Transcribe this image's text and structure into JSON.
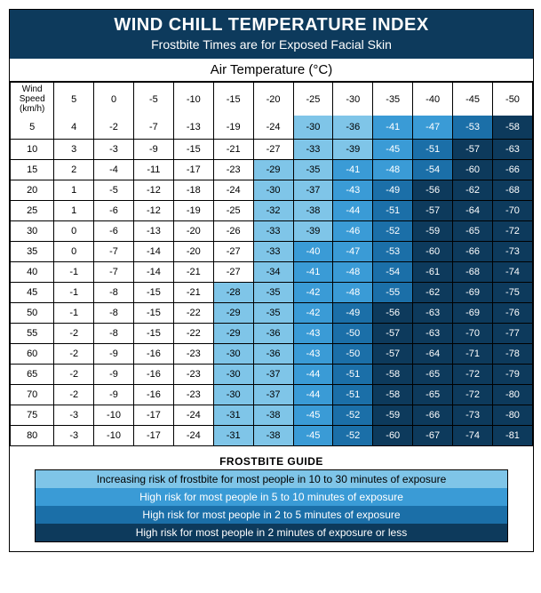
{
  "header": {
    "title": "WIND CHILL TEMPERATURE INDEX",
    "subtitle": "Frostbite Times are for Exposed Facial Skin"
  },
  "air_temp_label": "Air Temperature (°C)",
  "corner_label": "Wind Speed (km/h)",
  "chart": {
    "type": "table-heatmap",
    "col_headers": [
      "5",
      "0",
      "-5",
      "-10",
      "-15",
      "-20",
      "-25",
      "-30",
      "-35",
      "-40",
      "-45",
      "-50"
    ],
    "row_headers": [
      "5",
      "10",
      "15",
      "20",
      "25",
      "30",
      "35",
      "40",
      "45",
      "50",
      "55",
      "60",
      "65",
      "70",
      "75",
      "80"
    ],
    "values": [
      [
        "4",
        "-2",
        "-7",
        "-13",
        "-19",
        "-24",
        "-30",
        "-36",
        "-41",
        "-47",
        "-53",
        "-58"
      ],
      [
        "3",
        "-3",
        "-9",
        "-15",
        "-21",
        "-27",
        "-33",
        "-39",
        "-45",
        "-51",
        "-57",
        "-63"
      ],
      [
        "2",
        "-4",
        "-11",
        "-17",
        "-23",
        "-29",
        "-35",
        "-41",
        "-48",
        "-54",
        "-60",
        "-66"
      ],
      [
        "1",
        "-5",
        "-12",
        "-18",
        "-24",
        "-30",
        "-37",
        "-43",
        "-49",
        "-56",
        "-62",
        "-68"
      ],
      [
        "1",
        "-6",
        "-12",
        "-19",
        "-25",
        "-32",
        "-38",
        "-44",
        "-51",
        "-57",
        "-64",
        "-70"
      ],
      [
        "0",
        "-6",
        "-13",
        "-20",
        "-26",
        "-33",
        "-39",
        "-46",
        "-52",
        "-59",
        "-65",
        "-72"
      ],
      [
        "0",
        "-7",
        "-14",
        "-20",
        "-27",
        "-33",
        "-40",
        "-47",
        "-53",
        "-60",
        "-66",
        "-73"
      ],
      [
        "-1",
        "-7",
        "-14",
        "-21",
        "-27",
        "-34",
        "-41",
        "-48",
        "-54",
        "-61",
        "-68",
        "-74"
      ],
      [
        "-1",
        "-8",
        "-15",
        "-21",
        "-28",
        "-35",
        "-42",
        "-48",
        "-55",
        "-62",
        "-69",
        "-75"
      ],
      [
        "-1",
        "-8",
        "-15",
        "-22",
        "-29",
        "-35",
        "-42",
        "-49",
        "-56",
        "-63",
        "-69",
        "-76"
      ],
      [
        "-2",
        "-8",
        "-15",
        "-22",
        "-29",
        "-36",
        "-43",
        "-50",
        "-57",
        "-63",
        "-70",
        "-77"
      ],
      [
        "-2",
        "-9",
        "-16",
        "-23",
        "-30",
        "-36",
        "-43",
        "-50",
        "-57",
        "-64",
        "-71",
        "-78"
      ],
      [
        "-2",
        "-9",
        "-16",
        "-23",
        "-30",
        "-37",
        "-44",
        "-51",
        "-58",
        "-65",
        "-72",
        "-79"
      ],
      [
        "-2",
        "-9",
        "-16",
        "-23",
        "-30",
        "-37",
        "-44",
        "-51",
        "-58",
        "-65",
        "-72",
        "-80"
      ],
      [
        "-3",
        "-10",
        "-17",
        "-24",
        "-31",
        "-38",
        "-45",
        "-52",
        "-59",
        "-66",
        "-73",
        "-80"
      ],
      [
        "-3",
        "-10",
        "-17",
        "-24",
        "-31",
        "-38",
        "-45",
        "-52",
        "-60",
        "-67",
        "-74",
        "-81"
      ]
    ],
    "risk": [
      [
        0,
        0,
        0,
        0,
        0,
        0,
        1,
        1,
        2,
        2,
        3,
        4
      ],
      [
        0,
        0,
        0,
        0,
        0,
        0,
        1,
        1,
        2,
        3,
        4,
        4
      ],
      [
        0,
        0,
        0,
        0,
        0,
        1,
        1,
        2,
        2,
        3,
        4,
        4
      ],
      [
        0,
        0,
        0,
        0,
        0,
        1,
        1,
        2,
        3,
        4,
        4,
        4
      ],
      [
        0,
        0,
        0,
        0,
        0,
        1,
        1,
        2,
        3,
        4,
        4,
        4
      ],
      [
        0,
        0,
        0,
        0,
        0,
        1,
        1,
        2,
        3,
        4,
        4,
        4
      ],
      [
        0,
        0,
        0,
        0,
        0,
        1,
        2,
        2,
        3,
        4,
        4,
        4
      ],
      [
        0,
        0,
        0,
        0,
        0,
        1,
        2,
        2,
        3,
        4,
        4,
        4
      ],
      [
        0,
        0,
        0,
        0,
        1,
        1,
        2,
        2,
        3,
        4,
        4,
        4
      ],
      [
        0,
        0,
        0,
        0,
        1,
        1,
        2,
        3,
        4,
        4,
        4,
        4
      ],
      [
        0,
        0,
        0,
        0,
        1,
        1,
        2,
        3,
        4,
        4,
        4,
        4
      ],
      [
        0,
        0,
        0,
        0,
        1,
        1,
        2,
        3,
        4,
        4,
        4,
        4
      ],
      [
        0,
        0,
        0,
        0,
        1,
        1,
        2,
        3,
        4,
        4,
        4,
        4
      ],
      [
        0,
        0,
        0,
        0,
        1,
        1,
        2,
        3,
        4,
        4,
        4,
        4
      ],
      [
        0,
        0,
        0,
        0,
        1,
        1,
        2,
        3,
        4,
        4,
        4,
        4
      ],
      [
        0,
        0,
        0,
        0,
        1,
        1,
        2,
        3,
        4,
        4,
        4,
        4
      ]
    ],
    "risk_colors": [
      "#ffffff",
      "#7fc5e8",
      "#3a9bd6",
      "#1b6fa8",
      "#0d3a5c"
    ]
  },
  "guide_title": "FROSTBITE GUIDE",
  "legend": [
    {
      "risk": 1,
      "text": "Increasing risk of  frostbite for most people in 10 to 30 minutes of exposure"
    },
    {
      "risk": 2,
      "text": "High risk for most people in 5 to 10 minutes of exposure"
    },
    {
      "risk": 3,
      "text": "High risk for most people in 2 to 5 minutes of exposure"
    },
    {
      "risk": 4,
      "text": "High risk for most people in 2 minutes of exposure or less"
    }
  ]
}
